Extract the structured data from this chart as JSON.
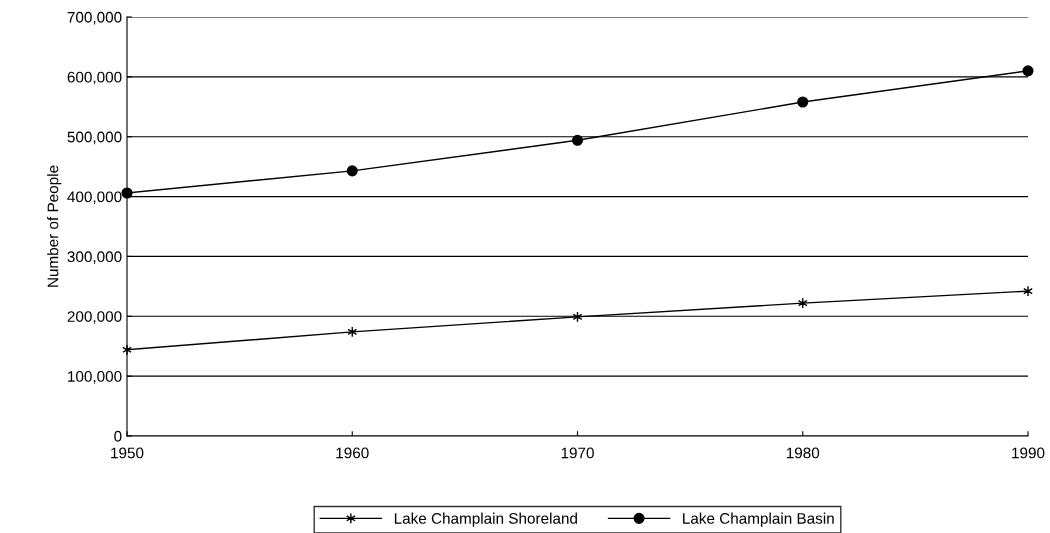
{
  "chart_data": {
    "type": "line",
    "ylabel": "Number of People",
    "x": [
      1950,
      1960,
      1970,
      1980,
      1990
    ],
    "series": [
      {
        "name": "Lake Champlain Shoreland",
        "color": "#000000",
        "marker": "cross",
        "values": [
          144000,
          174000,
          199000,
          222000,
          242000
        ]
      },
      {
        "name": "Lake Champlain Basin",
        "color": "#000000",
        "marker": "circle",
        "values": [
          406000,
          443000,
          494000,
          558000,
          610000
        ]
      }
    ],
    "xlim": [
      1950,
      1990
    ],
    "xticks": [
      1950,
      1960,
      1970,
      1980,
      1990
    ],
    "ylim": [
      0,
      700000
    ],
    "yticks": [
      {
        "value": 0,
        "label": "0"
      },
      {
        "value": 100000,
        "label": "100,000"
      },
      {
        "value": 200000,
        "label": "200,000"
      },
      {
        "value": 300000,
        "label": "300,000"
      },
      {
        "value": 400000,
        "label": "400,000"
      },
      {
        "value": 500000,
        "label": "500,000"
      },
      {
        "value": 600000,
        "label": "600,000"
      },
      {
        "value": 700000,
        "label": "700,000"
      }
    ],
    "grid": "y",
    "legend": "bottom",
    "line_style": "solid"
  }
}
